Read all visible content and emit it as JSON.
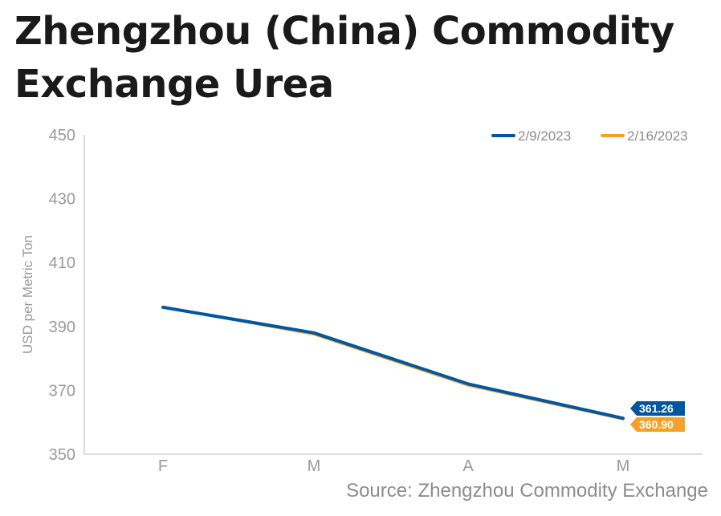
{
  "title": "Zhengzhou (China) Commodity Exchange Urea",
  "source": "Source: Zhengzhou Commodity Exchange",
  "chart_data": {
    "type": "line",
    "categories": [
      "F",
      "M",
      "A",
      "M"
    ],
    "ylabel": "USD per Metric Ton",
    "ylim": [
      350,
      450
    ],
    "yticks": [
      350,
      370,
      390,
      410,
      430,
      450
    ],
    "grid": false,
    "legend_position": "top-right",
    "series": [
      {
        "name": "2/9/2023",
        "color": "#0057a0",
        "values": [
          396,
          388,
          372,
          361.26
        ],
        "end_label": "361.26"
      },
      {
        "name": "2/16/2023",
        "color": "#f5a02a",
        "values": [
          396,
          387.5,
          371.5,
          360.9
        ],
        "end_label": "360.90"
      }
    ]
  }
}
